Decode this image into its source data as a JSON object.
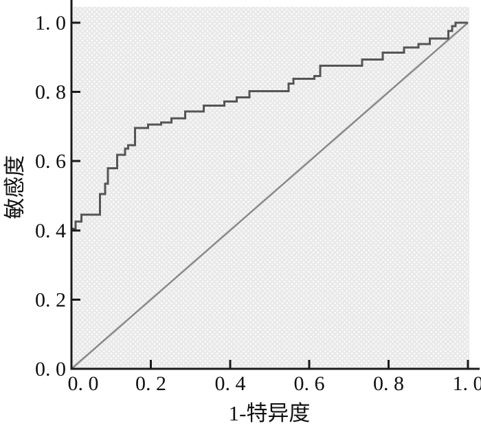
{
  "chart_data": {
    "type": "line",
    "title": "",
    "xlabel": "1-特异度",
    "ylabel": "敏感度",
    "xlim": [
      0.0,
      1.0
    ],
    "ylim": [
      0.0,
      1.0
    ],
    "grid": "off",
    "legend": "none",
    "axis_color": "#1a1a1a",
    "plot_background_color": "#e9e9e9",
    "plot_background_pattern": "white-dot-grid",
    "x_tick_values": [
      0.0,
      0.2,
      0.4,
      0.6,
      0.8,
      1.0
    ],
    "x_tick_labels": [
      "0. 0",
      "0. 2",
      "0. 4",
      "0. 6",
      "0. 8",
      "1. 0"
    ],
    "y_tick_values": [
      0.0,
      0.2,
      0.4,
      0.6,
      0.8,
      1.0
    ],
    "y_tick_labels": [
      "0. 0",
      "0. 2",
      "0. 4",
      "0. 6",
      "0. 8",
      "1. 0"
    ],
    "series": [
      {
        "name": "roc-curve",
        "draw": "step-after",
        "color": "#555555",
        "stroke_width": 3,
        "points": [
          [
            0.0,
            0.405
          ],
          [
            0.01,
            0.425
          ],
          [
            0.025,
            0.445
          ],
          [
            0.072,
            0.505
          ],
          [
            0.085,
            0.535
          ],
          [
            0.092,
            0.58
          ],
          [
            0.115,
            0.618
          ],
          [
            0.135,
            0.636
          ],
          [
            0.143,
            0.646
          ],
          [
            0.16,
            0.696
          ],
          [
            0.193,
            0.706
          ],
          [
            0.226,
            0.712
          ],
          [
            0.252,
            0.724
          ],
          [
            0.287,
            0.744
          ],
          [
            0.334,
            0.76
          ],
          [
            0.386,
            0.772
          ],
          [
            0.417,
            0.784
          ],
          [
            0.449,
            0.802
          ],
          [
            0.548,
            0.824
          ],
          [
            0.56,
            0.838
          ],
          [
            0.613,
            0.846
          ],
          [
            0.627,
            0.876
          ],
          [
            0.733,
            0.894
          ],
          [
            0.785,
            0.914
          ],
          [
            0.839,
            0.928
          ],
          [
            0.875,
            0.938
          ],
          [
            0.904,
            0.954
          ],
          [
            0.951,
            0.976
          ],
          [
            0.96,
            0.99
          ],
          [
            0.969,
            1.0
          ],
          [
            1.0,
            1.0
          ]
        ]
      },
      {
        "name": "chance-diagonal",
        "draw": "line",
        "color": "#888888",
        "stroke_width": 2.5,
        "points": [
          [
            0.0,
            0.0
          ],
          [
            1.0,
            1.0
          ]
        ]
      }
    ]
  }
}
